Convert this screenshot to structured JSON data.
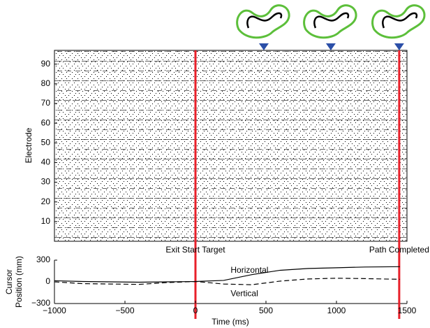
{
  "chart_data": [
    {
      "type": "raster",
      "ylabel": "Electrode",
      "xlim": [
        -1000,
        1500
      ],
      "ylim": [
        0,
        97
      ],
      "yticks": [
        10,
        20,
        30,
        40,
        50,
        60,
        70,
        80,
        90
      ],
      "events": [
        {
          "x": 0,
          "label": "Exit Start Target",
          "color": "#e8202a"
        },
        {
          "x": 1445,
          "label": "Path Completed",
          "color": "#e8202a"
        }
      ],
      "markers": {
        "x": [
          485,
          960,
          1445
        ],
        "color": "#2b4fa8"
      }
    },
    {
      "type": "line",
      "xlabel": "Time (ms)",
      "ylabel": [
        "Cursor",
        "Position (mm)"
      ],
      "xlim": [
        -1000,
        1500
      ],
      "xticks": [
        {
          "value": -1000,
          "label": "−1000"
        },
        {
          "value": -500,
          "label": "−500"
        },
        0,
        500,
        1000,
        1500
      ],
      "ylim": [
        -300,
        300
      ],
      "yticks": [
        {
          "value": -300,
          "label": "−300"
        },
        0,
        300
      ],
      "x": [
        -1000,
        -800,
        -600,
        -400,
        -200,
        0,
        200,
        400,
        600,
        800,
        1000,
        1200,
        1450
      ],
      "series": [
        {
          "name": "Horizontal",
          "color": "#000000",
          "dash": false,
          "values": [
            15,
            5,
            0,
            -5,
            0,
            5,
            20,
            100,
            160,
            185,
            195,
            205,
            210
          ]
        },
        {
          "name": "Vertical",
          "color": "#000000",
          "dash": true,
          "values": [
            0,
            -25,
            -30,
            -35,
            -10,
            5,
            -30,
            -40,
            10,
            40,
            50,
            45,
            35
          ]
        }
      ]
    }
  ]
}
